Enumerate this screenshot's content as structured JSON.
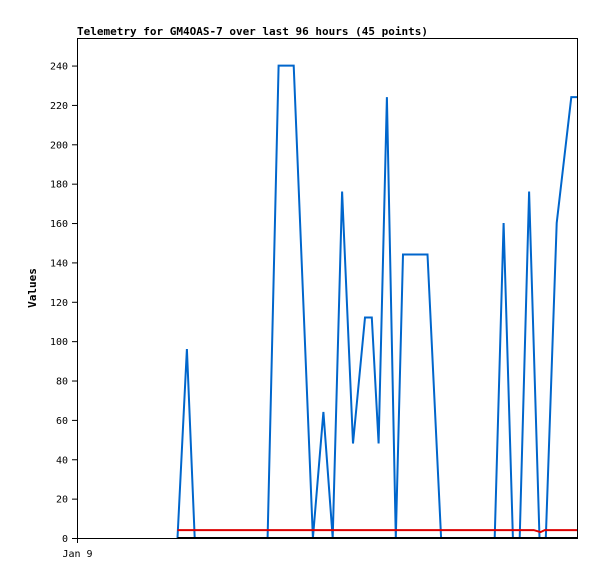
{
  "chart_data": {
    "type": "line",
    "title": "Telemetry for GM4OAS-7 over last 96 hours (45 points)",
    "xlabel": "",
    "ylabel": "Values",
    "ylim": [
      0,
      254
    ],
    "xlim": [
      0,
      96
    ],
    "y_ticks": [
      0,
      20,
      40,
      60,
      80,
      100,
      120,
      140,
      160,
      180,
      200,
      220,
      240
    ],
    "x_ticks": [
      {
        "x": 0,
        "label": "Jan 9"
      }
    ],
    "grid": false,
    "legend": "none",
    "series": [
      {
        "color": "#0066cc",
        "points": [
          [
            19.3,
            0
          ],
          [
            21.1,
            96
          ],
          [
            22.6,
            0
          ],
          [
            36.6,
            0
          ],
          [
            38.7,
            240
          ],
          [
            41.6,
            240
          ],
          [
            45.3,
            0
          ],
          [
            47.3,
            64
          ],
          [
            49.1,
            0
          ],
          [
            50.9,
            176
          ],
          [
            53.0,
            48
          ],
          [
            55.3,
            112
          ],
          [
            56.6,
            112
          ],
          [
            57.9,
            48
          ],
          [
            59.5,
            224
          ],
          [
            61.2,
            0
          ],
          [
            62.6,
            144
          ],
          [
            67.3,
            144
          ],
          [
            69.9,
            0
          ],
          [
            80.2,
            0
          ],
          [
            81.9,
            160
          ],
          [
            83.7,
            0
          ],
          [
            85.0,
            0
          ],
          [
            86.8,
            176
          ],
          [
            88.8,
            0
          ],
          [
            90.0,
            0
          ],
          [
            92.1,
            160
          ],
          [
            94.9,
            224
          ],
          [
            96.0,
            224
          ]
        ]
      },
      {
        "color": "#dd0000",
        "points": [
          [
            19.3,
            4
          ],
          [
            87.7,
            4
          ],
          [
            89.0,
            3
          ],
          [
            89.8,
            4
          ],
          [
            96.0,
            4
          ]
        ]
      },
      {
        "color": "#000000",
        "points": [
          [
            19.3,
            0
          ],
          [
            96.0,
            0
          ]
        ]
      }
    ]
  }
}
